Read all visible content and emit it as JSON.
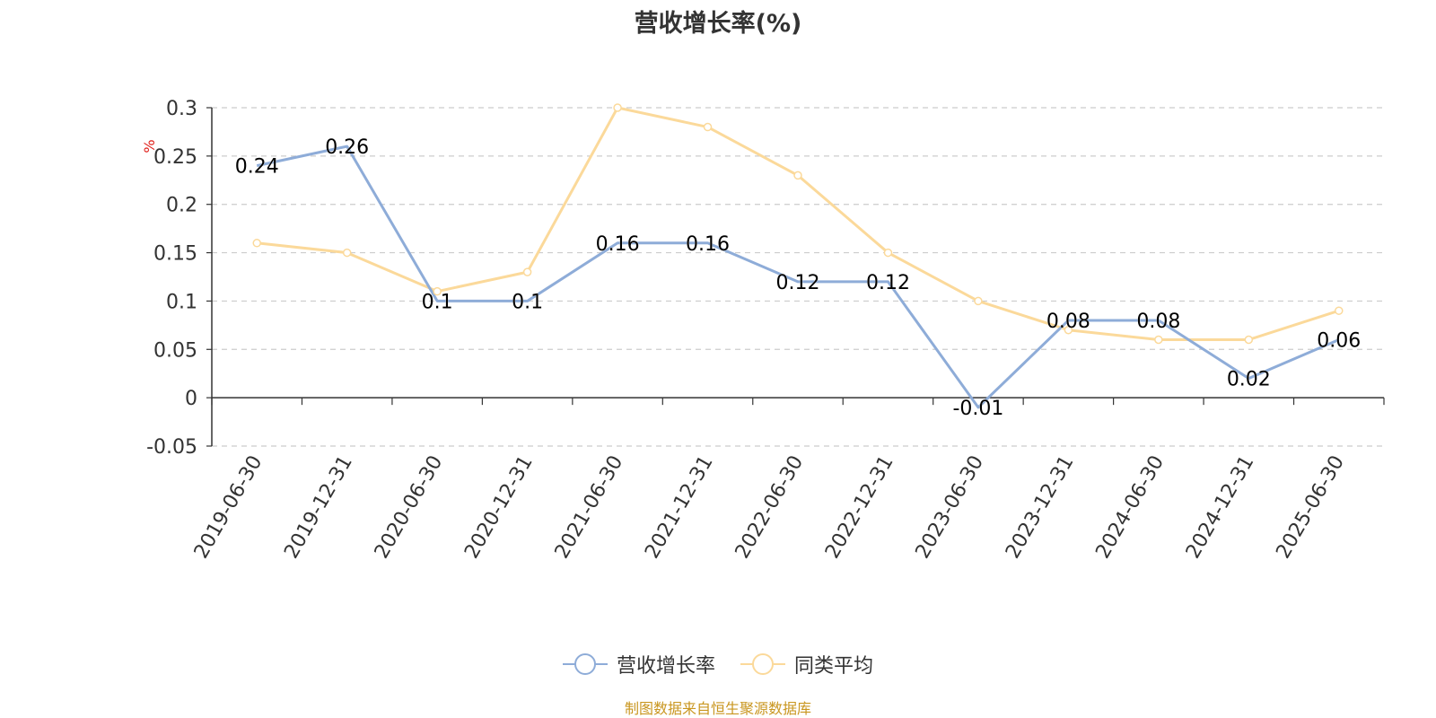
{
  "title": "营收增长率(%)",
  "unit_label": "%",
  "source": "制图数据来自恒生聚源数据库",
  "colors": {
    "series1": "#8eacd8",
    "series2": "#fbd99a",
    "unit": "#e0201b",
    "source": "#c9961f",
    "axis": "#333333",
    "grid": "#cccccc"
  },
  "legend": [
    {
      "label": "营收增长率",
      "color": "#8eacd8"
    },
    {
      "label": "同类平均",
      "color": "#fbd99a"
    }
  ],
  "chart_data": {
    "type": "line",
    "title": "营收增长率(%)",
    "ylabel": "%",
    "ylim": [
      -0.05,
      0.3
    ],
    "yticks": [
      -0.05,
      0,
      0.05,
      0.1,
      0.15,
      0.2,
      0.25,
      0.3
    ],
    "grid": true,
    "legend_position": "bottom",
    "categories": [
      "2019-06-30",
      "2019-12-31",
      "2020-06-30",
      "2020-12-31",
      "2021-06-30",
      "2021-12-31",
      "2022-06-30",
      "2022-12-31",
      "2023-06-30",
      "2023-12-31",
      "2024-06-30",
      "2024-12-31",
      "2025-06-30"
    ],
    "series": [
      {
        "name": "营收增长率",
        "values": [
          0.24,
          0.26,
          0.1,
          0.1,
          0.16,
          0.16,
          0.12,
          0.12,
          -0.01,
          0.08,
          0.08,
          0.02,
          0.06
        ],
        "show_labels": true
      },
      {
        "name": "同类平均",
        "values": [
          0.16,
          0.15,
          0.11,
          0.13,
          0.3,
          0.28,
          0.23,
          0.15,
          0.1,
          0.07,
          0.06,
          0.06,
          0.09
        ],
        "show_labels": false
      }
    ]
  }
}
